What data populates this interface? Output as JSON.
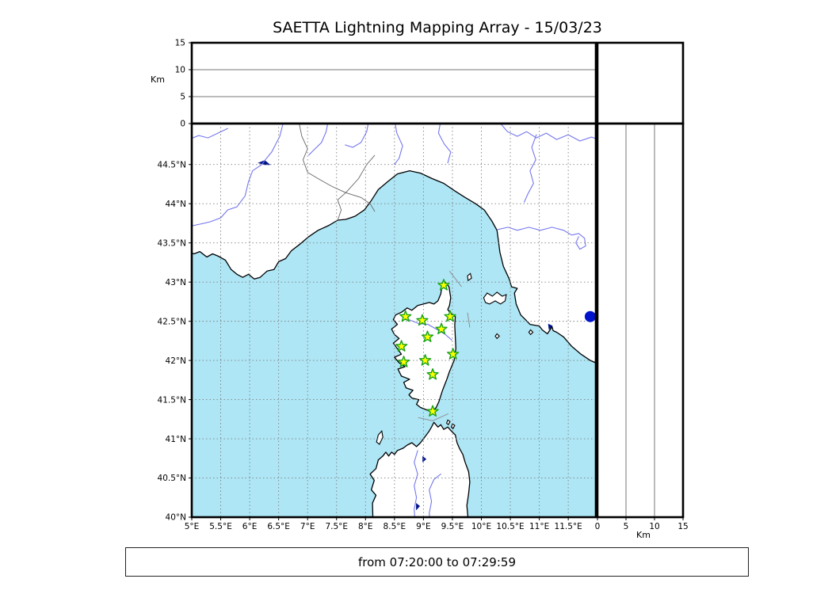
{
  "title": "SAETTA Lightning Mapping Array - 15/03/23",
  "footer": "from 07:20:00 to 07:29:59",
  "axes": {
    "km_label": "Km",
    "altitude_ticks": [
      {
        "v": 0,
        "label": "0"
      },
      {
        "v": 5,
        "label": "5"
      },
      {
        "v": 10,
        "label": "10"
      },
      {
        "v": 15,
        "label": "15"
      }
    ],
    "alt_range": [
      0,
      15
    ],
    "lon_range": [
      5.0,
      11.97
    ],
    "lat_range": [
      40.0,
      45.02
    ],
    "lon_ticks": [
      {
        "v": 5,
        "label": "5°E"
      },
      {
        "v": 5.5,
        "label": "5.5°E"
      },
      {
        "v": 6,
        "label": "6°E"
      },
      {
        "v": 6.5,
        "label": "6.5°E"
      },
      {
        "v": 7,
        "label": "7°E"
      },
      {
        "v": 7.5,
        "label": "7.5°E"
      },
      {
        "v": 8,
        "label": "8°E"
      },
      {
        "v": 8.5,
        "label": "8.5°E"
      },
      {
        "v": 9,
        "label": "9°E"
      },
      {
        "v": 9.5,
        "label": "9.5°E"
      },
      {
        "v": 10,
        "label": "10°E"
      },
      {
        "v": 10.5,
        "label": "10.5°E"
      },
      {
        "v": 11,
        "label": "11°E"
      },
      {
        "v": 11.5,
        "label": "11.5°E"
      }
    ],
    "lat_ticks": [
      {
        "v": 40,
        "label": "40°N"
      },
      {
        "v": 40.5,
        "label": "40.5°N"
      },
      {
        "v": 41,
        "label": "41°N"
      },
      {
        "v": 41.5,
        "label": "41.5°N"
      },
      {
        "v": 42,
        "label": "42°N"
      },
      {
        "v": 42.5,
        "label": "42.5°N"
      },
      {
        "v": 43,
        "label": "43°N"
      },
      {
        "v": 43.5,
        "label": "43.5°N"
      },
      {
        "v": 44,
        "label": "44°N"
      },
      {
        "v": 44.5,
        "label": "44.5°N"
      }
    ]
  },
  "chart_data": {
    "type": "scatter",
    "title": "SAETTA Lightning Mapping Array - 15/03/23",
    "annotation": "from 07:20:00 to 07:29:59",
    "layout": "XLMA-style: lon/alt top panel (0-15 Km), lon/lat map panel, alt/lat right panel, empty top-right histogram panel",
    "lightning_sources": [],
    "stations": [
      {
        "lon": 9.35,
        "lat": 42.96
      },
      {
        "lon": 8.69,
        "lat": 42.56
      },
      {
        "lon": 8.98,
        "lat": 42.51
      },
      {
        "lon": 9.46,
        "lat": 42.56
      },
      {
        "lon": 9.31,
        "lat": 42.4
      },
      {
        "lon": 9.07,
        "lat": 42.3
      },
      {
        "lon": 8.62,
        "lat": 42.18
      },
      {
        "lon": 9.51,
        "lat": 42.08
      },
      {
        "lon": 8.66,
        "lat": 41.98
      },
      {
        "lon": 9.03,
        "lat": 42.0
      },
      {
        "lon": 9.16,
        "lat": 41.82
      },
      {
        "lon": 9.16,
        "lat": 41.35
      }
    ],
    "other_markers": [
      {
        "lon": 11.88,
        "lat": 42.56,
        "shape": "circle",
        "color": "#0013cc"
      }
    ]
  },
  "colors": {
    "sea": "#aee6f5",
    "land": "#ffffff",
    "coast": "#000000",
    "river": "#7577ee",
    "border_line": "#666666",
    "cable_line": "#888888",
    "grid": "#808080",
    "lake": "#001489",
    "star_fill": "#ffff00",
    "star_edge": "#17a317",
    "dot": "#0013cc",
    "frame": "#000000",
    "panel_grid": "#777777"
  }
}
